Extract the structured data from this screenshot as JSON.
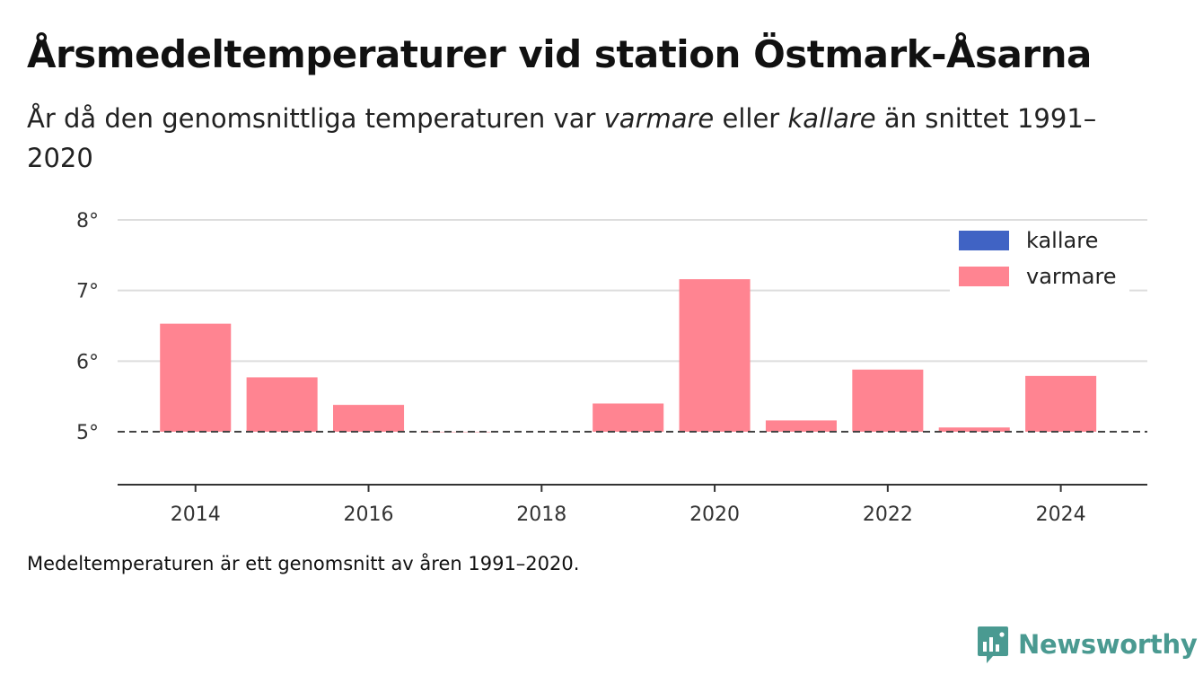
{
  "title": "Årsmedeltemperaturer vid station Östmark-Åsarna",
  "subtitle": {
    "part1": "År då den genomsnittliga temperaturen var ",
    "warm_word": "varmare",
    "part2": " eller ",
    "cold_word": "kallare",
    "part3": " än snittet 1991–2020"
  },
  "footnote": "Medeltemperaturen är ett genomsnitt av åren 1991–2020.",
  "brand": {
    "name": "Newsworthy",
    "icon": "newsworthy-logo-icon",
    "color": "#4a9a91"
  },
  "colors": {
    "warmer": "#ff8491",
    "colder": "#4063c4",
    "grid": "#dddddd",
    "baseline": "#444444",
    "axis": "#333333"
  },
  "chart_data": {
    "type": "bar",
    "baseline": 5.0,
    "x": [
      2014,
      2015,
      2016,
      2017,
      2019,
      2020,
      2021,
      2022,
      2023,
      2024
    ],
    "values": [
      6.53,
      5.77,
      5.38,
      5.0,
      5.4,
      7.16,
      5.16,
      5.88,
      5.06,
      5.79
    ],
    "ylim": [
      4.25,
      8.0
    ],
    "yticks": [
      5,
      6,
      7,
      8
    ],
    "ytick_labels": [
      "5°",
      "6°",
      "7°",
      "8°"
    ],
    "xlim": [
      2013.1,
      2025.0
    ],
    "xticks": [
      2014,
      2016,
      2018,
      2020,
      2022,
      2024
    ],
    "xtick_labels": [
      "2014",
      "2016",
      "2018",
      "2020",
      "2022",
      "2024"
    ],
    "legend": [
      {
        "label": "kallare",
        "color": "#4063c4"
      },
      {
        "label": "varmare",
        "color": "#ff8491"
      }
    ],
    "legend_position": "top-right",
    "grid": true
  }
}
